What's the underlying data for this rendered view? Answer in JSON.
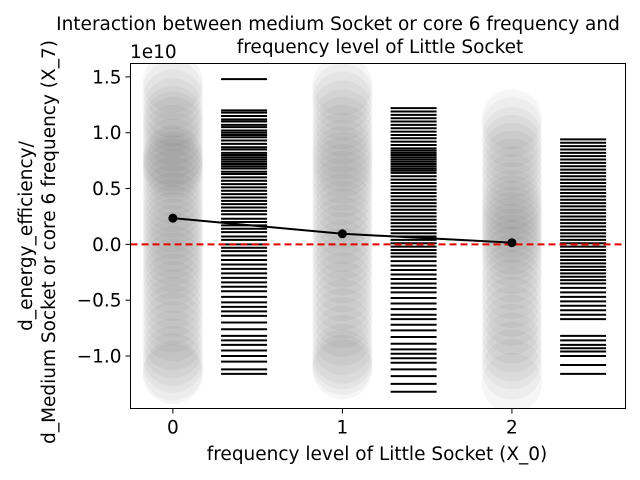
{
  "chart_data": {
    "type": "scatter",
    "title_lines": [
      "Interaction between medium Socket or core 6 frequency and",
      "frequency level of Little Socket"
    ],
    "xlabel": "frequency level of Little Socket (X_0)",
    "ylabel_lines": [
      "d_energy_efficiency/",
      "d_Medium Socket or core 6 frequency (X_7)"
    ],
    "y_offset_text": "1e10",
    "xlim": [
      -0.25,
      2.67
    ],
    "ylim": [
      -14700000000.0,
      16200000000.0
    ],
    "x_ticks": [
      0,
      1,
      2
    ],
    "x_tick_labels": [
      "0",
      "1",
      "2"
    ],
    "y_ticks": [
      15000000000.0,
      10000000000.0,
      5000000000.0,
      0.0,
      -5000000000.0,
      -10000000000.0
    ],
    "y_tick_labels": [
      "1.5",
      "1.0",
      "0.5",
      "0.0",
      "−0.5",
      "−1.0"
    ],
    "zero_line": {
      "y": 0,
      "color": "#e00000",
      "style": "dashed"
    },
    "mean_line": {
      "x": [
        0,
        1,
        2
      ],
      "y": [
        2350000000.0,
        950000000.0,
        150000000.0
      ],
      "color": "#000000"
    },
    "scatter_series": [
      {
        "x": 0,
        "y": [
          14500000000.0,
          13800000000.0,
          13000000000.0,
          12200000000.0,
          11500000000.0,
          11000000000.0,
          10500000000.0,
          9800000000.0,
          9200000000.0,
          8600000000.0,
          8000000000.0,
          7800000000.0,
          7400000000.0,
          7100000000.0,
          6800000000.0,
          6400000000.0,
          5800000000.0,
          5200000000.0,
          4500000000.0,
          3800000000.0,
          3200000000.0,
          2600000000.0,
          2000000000.0,
          1400000000.0,
          800000000.0,
          200000000.0,
          -400000000.0,
          -1000000000.0,
          -1600000000.0,
          -2200000000.0,
          -2800000000.0,
          -3500000000.0,
          -4200000000.0,
          -4900000000.0,
          -5600000000.0,
          -6300000000.0,
          -7000000000.0,
          -7800000000.0,
          -8600000000.0,
          -9300000000.0,
          -10000000000.0,
          -10600000000.0,
          -11300000000.0,
          -11600000000.0
        ]
      },
      {
        "x": 1,
        "y": [
          14200000000.0,
          13500000000.0,
          12800000000.0,
          12000000000.0,
          11200000000.0,
          10500000000.0,
          9800000000.0,
          9100000000.0,
          8500000000.0,
          7900000000.0,
          7400000000.0,
          6900000000.0,
          6300000000.0,
          5700000000.0,
          5100000000.0,
          4400000000.0,
          3700000000.0,
          3000000000.0,
          2300000000.0,
          1600000000.0,
          900000000.0,
          200000000.0,
          -500000000.0,
          -1200000000.0,
          -1900000000.0,
          -2600000000.0,
          -3400000000.0,
          -4200000000.0,
          -5000000000.0,
          -5800000000.0,
          -6600000000.0,
          -7400000000.0,
          -8200000000.0,
          -9000000000.0,
          -9800000000.0,
          -10300000000.0,
          -10800000000.0,
          -11200000000.0
        ]
      },
      {
        "x": 2,
        "y": [
          11200000000.0,
          10500000000.0,
          9600000000.0,
          8900000000.0,
          8200000000.0,
          7500000000.0,
          6800000000.0,
          6100000000.0,
          5400000000.0,
          4700000000.0,
          4000000000.0,
          3500000000.0,
          3000000000.0,
          2500000000.0,
          2000000000.0,
          1500000000.0,
          1000000000.0,
          500000000.0,
          0.0,
          -500000000.0,
          -1100000000.0,
          -1800000000.0,
          -2500000000.0,
          -3200000000.0,
          -4000000000.0,
          -4800000000.0,
          -5600000000.0,
          -6400000000.0,
          -7200000000.0,
          -8000000000.0,
          -8800000000.0,
          -9600000000.0,
          -10300000000.0,
          -11200000000.0,
          -12400000000.0
        ]
      }
    ],
    "rug_series": [
      {
        "x": 0.42,
        "y": [
          14800000000.0,
          12000000000.0,
          11800000000.0,
          11500000000.0,
          11200000000.0,
          11000000000.0,
          10700000000.0,
          10500000000.0,
          10200000000.0,
          10000000000.0,
          9800000000.0,
          9600000000.0,
          9300000000.0,
          9000000000.0,
          8700000000.0,
          8500000000.0,
          8200000000.0,
          8000000000.0,
          7800000000.0,
          7600000000.0,
          7400000000.0,
          7200000000.0,
          7000000000.0,
          6800000000.0,
          6500000000.0,
          6300000000.0,
          6000000000.0,
          5700000000.0,
          5400000000.0,
          5100000000.0,
          4800000000.0,
          4500000000.0,
          4200000000.0,
          3900000000.0,
          3600000000.0,
          3300000000.0,
          3000000000.0,
          2700000000.0,
          2300000000.0,
          2000000000.0,
          1700000000.0,
          1400000000.0,
          1100000000.0,
          700000000.0,
          400000000.0,
          0.0,
          -300000000.0,
          -600000000.0,
          -1000000000.0,
          -1400000000.0,
          -1800000000.0,
          -2200000000.0,
          -2600000000.0,
          -3000000000.0,
          -3400000000.0,
          -3800000000.0,
          -4200000000.0,
          -4700000000.0,
          -5200000000.0,
          -5600000000.0,
          -6000000000.0,
          -6400000000.0,
          -7000000000.0,
          -7600000000.0,
          -8200000000.0,
          -8600000000.0,
          -9000000000.0,
          -9500000000.0,
          -10000000000.0,
          -10500000000.0,
          -11200000000.0,
          -11600000000.0
        ]
      },
      {
        "x": 1.42,
        "y": [
          12200000000.0,
          11900000000.0,
          11600000000.0,
          11300000000.0,
          11000000000.0,
          10700000000.0,
          10400000000.0,
          10100000000.0,
          9800000000.0,
          9500000000.0,
          9200000000.0,
          8900000000.0,
          8600000000.0,
          8400000000.0,
          8200000000.0,
          8000000000.0,
          7800000000.0,
          7600000000.0,
          7400000000.0,
          7200000000.0,
          7000000000.0,
          6800000000.0,
          6600000000.0,
          6400000000.0,
          6100000000.0,
          5800000000.0,
          5500000000.0,
          5200000000.0,
          4900000000.0,
          4600000000.0,
          4300000000.0,
          4000000000.0,
          3700000000.0,
          3400000000.0,
          3100000000.0,
          2800000000.0,
          2500000000.0,
          2200000000.0,
          1900000000.0,
          1600000000.0,
          1300000000.0,
          1000000000.0,
          700000000.0,
          400000000.0,
          100000000.0,
          -200000000.0,
          -500000000.0,
          -800000000.0,
          -1100000000.0,
          -1500000000.0,
          -1900000000.0,
          -2300000000.0,
          -2700000000.0,
          -3100000000.0,
          -3500000000.0,
          -3900000000.0,
          -4300000000.0,
          -4800000000.0,
          -5300000000.0,
          -5800000000.0,
          -6300000000.0,
          -6700000000.0,
          -7200000000.0,
          -7700000000.0,
          -8300000000.0,
          -8900000000.0,
          -9400000000.0,
          -9800000000.0,
          -10200000000.0,
          -10600000000.0,
          -11200000000.0,
          -11800000000.0,
          -12500000000.0,
          -13200000000.0
        ]
      },
      {
        "x": 2.42,
        "y": [
          9400000000.0,
          9100000000.0,
          8800000000.0,
          8500000000.0,
          8200000000.0,
          7900000000.0,
          7600000000.0,
          7300000000.0,
          7000000000.0,
          6700000000.0,
          6400000000.0,
          6100000000.0,
          5800000000.0,
          5500000000.0,
          5200000000.0,
          4900000000.0,
          4600000000.0,
          4300000000.0,
          4000000000.0,
          3700000000.0,
          3400000000.0,
          3100000000.0,
          2800000000.0,
          2500000000.0,
          2200000000.0,
          1900000000.0,
          1600000000.0,
          1300000000.0,
          1000000000.0,
          700000000.0,
          400000000.0,
          100000000.0,
          -200000000.0,
          -500000000.0,
          -800000000.0,
          -1100000000.0,
          -1400000000.0,
          -1700000000.0,
          -2000000000.0,
          -2300000000.0,
          -2600000000.0,
          -2900000000.0,
          -3200000000.0,
          -3500000000.0,
          -3900000000.0,
          -4300000000.0,
          -4700000000.0,
          -5100000000.0,
          -5500000000.0,
          -5900000000.0,
          -6300000000.0,
          -6700000000.0,
          -8200000000.0,
          -8600000000.0,
          -9000000000.0,
          -9300000000.0,
          -9600000000.0,
          -10000000000.0,
          -10800000000.0,
          -11600000000.0
        ]
      }
    ],
    "grid": false,
    "legend": "none"
  }
}
